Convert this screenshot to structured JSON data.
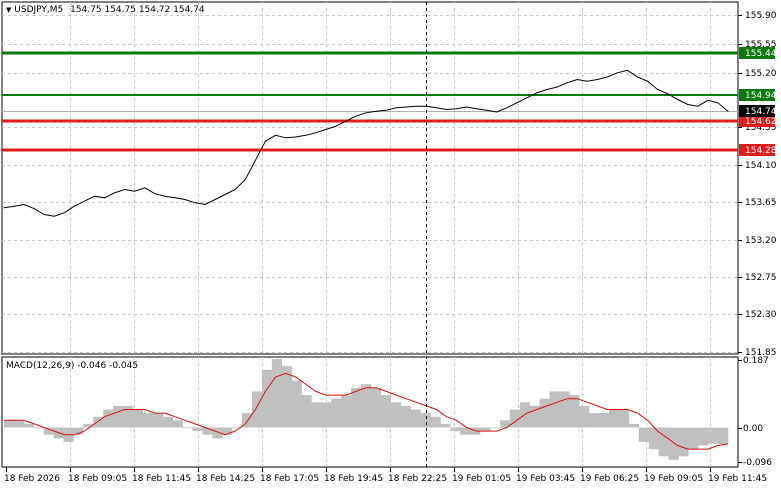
{
  "header": {
    "menu_glyph": "▼",
    "symbol": "USDJPY,M5",
    "ohlc": "154.75 154.75 154.72 154.74"
  },
  "macd": {
    "label": "MACD(12,26,9) -0.046 -0.045",
    "axis_ticks": [
      "0.187",
      "0.00",
      "-0.096"
    ]
  },
  "price_axis": {
    "ticks": [
      "155.90",
      "155.55",
      "155.20",
      "154.55",
      "154.10",
      "153.65",
      "153.20",
      "152.75",
      "152.30",
      "151.85"
    ]
  },
  "levels": [
    {
      "name": "resistance-high",
      "price": 155.44,
      "label": "155.44",
      "color": "#0a7a0a"
    },
    {
      "name": "resistance-low",
      "price": 154.94,
      "label": "154.94",
      "color": "#0a7a0a"
    },
    {
      "name": "support-high",
      "price": 154.62,
      "label": "154.62",
      "color": "#e31b1b"
    },
    {
      "name": "support-low",
      "price": 154.28,
      "label": "154.28",
      "color": "#e31b1b"
    }
  ],
  "current_price": {
    "label": "154.74",
    "price": 154.74
  },
  "time_axis": {
    "labels": [
      "18 Feb 2026",
      "18 Feb 09:05",
      "18 Feb 11:45",
      "18 Feb 14:25",
      "18 Feb 17:05",
      "18 Feb 19:45",
      "18 Feb 22:25",
      "19 Feb 01:05",
      "19 Feb 03:45",
      "19 Feb 06:25",
      "19 Feb 09:05",
      "19 Feb 11:45"
    ]
  },
  "chart_data": {
    "type": "line",
    "price_series": [
      153.58,
      153.6,
      153.62,
      153.57,
      153.5,
      153.48,
      153.52,
      153.6,
      153.66,
      153.72,
      153.7,
      153.76,
      153.8,
      153.78,
      153.82,
      153.75,
      153.72,
      153.7,
      153.68,
      153.64,
      153.62,
      153.68,
      153.74,
      153.8,
      153.92,
      154.15,
      154.38,
      154.45,
      154.42,
      154.43,
      154.45,
      154.48,
      154.52,
      154.56,
      154.62,
      154.68,
      154.72,
      154.74,
      154.75,
      154.78,
      154.79,
      154.8,
      154.8,
      154.78,
      154.76,
      154.77,
      154.79,
      154.77,
      154.75,
      154.73,
      154.78,
      154.84,
      154.9,
      154.96,
      155.0,
      155.03,
      155.08,
      155.12,
      155.1,
      155.12,
      155.15,
      155.2,
      155.23,
      155.15,
      155.1,
      155.0,
      154.95,
      154.88,
      154.82,
      154.8,
      154.87,
      154.84,
      154.74
    ],
    "ylim": [
      151.85,
      156.05
    ],
    "macd": {
      "histogram": [
        0.02,
        0.02,
        0.01,
        0.0,
        -0.02,
        -0.03,
        -0.04,
        -0.02,
        0.01,
        0.03,
        0.05,
        0.06,
        0.06,
        0.05,
        0.04,
        0.04,
        0.03,
        0.02,
        0.0,
        -0.01,
        -0.02,
        -0.03,
        -0.02,
        0.0,
        0.04,
        0.1,
        0.16,
        0.19,
        0.17,
        0.13,
        0.09,
        0.07,
        0.07,
        0.08,
        0.09,
        0.11,
        0.12,
        0.11,
        0.09,
        0.07,
        0.06,
        0.05,
        0.04,
        0.03,
        0.01,
        -0.01,
        -0.02,
        -0.02,
        -0.01,
        0.0,
        0.02,
        0.05,
        0.07,
        0.06,
        0.08,
        0.1,
        0.1,
        0.09,
        0.06,
        0.04,
        0.04,
        0.05,
        0.05,
        0.01,
        -0.04,
        -0.06,
        -0.08,
        -0.09,
        -0.08,
        -0.06,
        -0.05,
        -0.045,
        -0.046
      ],
      "signal": [
        0.02,
        0.02,
        0.02,
        0.01,
        0.0,
        -0.01,
        -0.02,
        -0.02,
        -0.01,
        0.01,
        0.03,
        0.04,
        0.05,
        0.05,
        0.05,
        0.04,
        0.04,
        0.03,
        0.02,
        0.01,
        0.0,
        -0.01,
        -0.02,
        -0.01,
        0.01,
        0.05,
        0.1,
        0.14,
        0.15,
        0.14,
        0.12,
        0.1,
        0.09,
        0.09,
        0.09,
        0.1,
        0.11,
        0.11,
        0.1,
        0.09,
        0.08,
        0.07,
        0.06,
        0.05,
        0.03,
        0.02,
        0.0,
        -0.01,
        -0.01,
        -0.01,
        0.0,
        0.02,
        0.04,
        0.05,
        0.06,
        0.07,
        0.08,
        0.08,
        0.07,
        0.06,
        0.05,
        0.05,
        0.05,
        0.04,
        0.02,
        -0.01,
        -0.03,
        -0.05,
        -0.06,
        -0.06,
        -0.06,
        -0.05,
        -0.045
      ],
      "ylim": [
        -0.104,
        0.19
      ]
    }
  }
}
